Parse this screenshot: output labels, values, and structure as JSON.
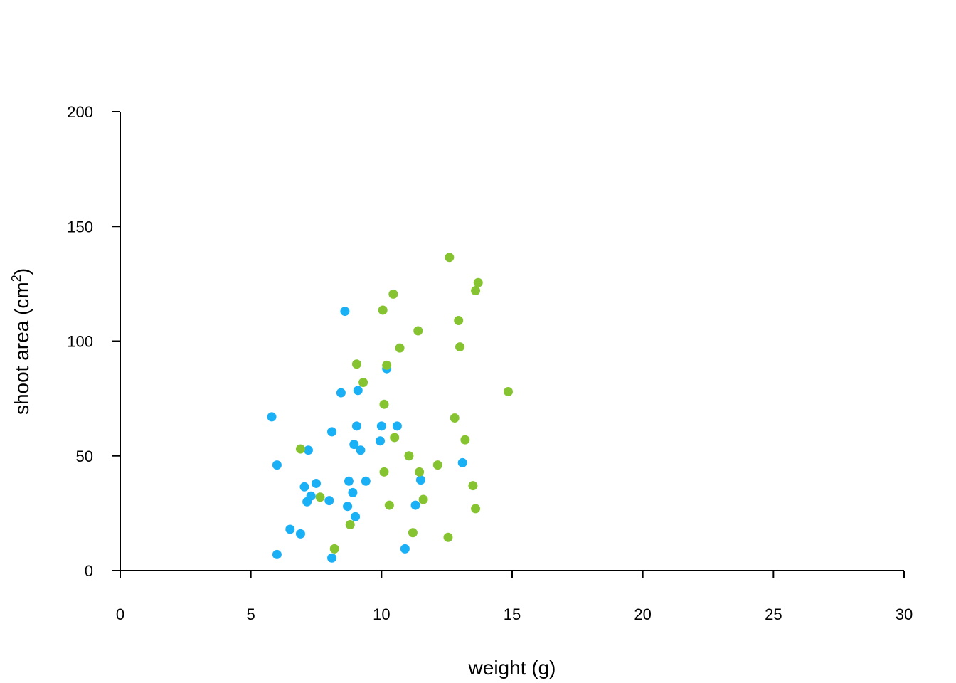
{
  "chart_data": {
    "type": "scatter",
    "title": "",
    "xlabel": "weight (g)",
    "ylabel_main": "shoot area (cm",
    "ylabel_sup": "2",
    "ylabel_end": ")",
    "xlim": [
      0,
      30
    ],
    "ylim": [
      0,
      200
    ],
    "x_ticks": [
      0,
      5,
      10,
      15,
      20,
      25,
      30
    ],
    "y_ticks": [
      0,
      50,
      100,
      150,
      200
    ],
    "x_tick_labels": [
      "0",
      "5",
      "10",
      "15",
      "20",
      "25",
      "30"
    ],
    "y_tick_labels": [
      "0",
      "50",
      "100",
      "150",
      "200"
    ],
    "grid": false,
    "legend": "none",
    "series": [
      {
        "color": "#1ab0f5",
        "points": [
          [
            5.8,
            67
          ],
          [
            6.0,
            46
          ],
          [
            6.0,
            7
          ],
          [
            6.5,
            18
          ],
          [
            6.9,
            16
          ],
          [
            7.05,
            36.5
          ],
          [
            7.15,
            30
          ],
          [
            7.2,
            52.5
          ],
          [
            7.3,
            32.5
          ],
          [
            7.5,
            38
          ],
          [
            8.0,
            30.5
          ],
          [
            8.1,
            60.5
          ],
          [
            8.1,
            5.5
          ],
          [
            8.45,
            77.5
          ],
          [
            8.6,
            113
          ],
          [
            8.7,
            28
          ],
          [
            8.75,
            39
          ],
          [
            8.9,
            34
          ],
          [
            8.95,
            55
          ],
          [
            9.0,
            23.5
          ],
          [
            9.05,
            63
          ],
          [
            9.1,
            78.5
          ],
          [
            9.2,
            52.5
          ],
          [
            9.4,
            39
          ],
          [
            9.95,
            56.5
          ],
          [
            10.0,
            63
          ],
          [
            10.2,
            88
          ],
          [
            10.6,
            63
          ],
          [
            10.9,
            9.5
          ],
          [
            11.3,
            28.5
          ],
          [
            11.5,
            39.5
          ],
          [
            13.1,
            47
          ]
        ]
      },
      {
        "color": "#86c331",
        "points": [
          [
            6.9,
            53
          ],
          [
            7.65,
            32
          ],
          [
            8.2,
            9.5
          ],
          [
            8.8,
            20
          ],
          [
            9.05,
            90
          ],
          [
            9.3,
            82
          ],
          [
            10.05,
            113.5
          ],
          [
            10.1,
            72.5
          ],
          [
            10.1,
            43
          ],
          [
            10.2,
            89.5
          ],
          [
            10.3,
            28.5
          ],
          [
            10.45,
            120.5
          ],
          [
            10.5,
            58
          ],
          [
            10.7,
            97
          ],
          [
            11.05,
            50
          ],
          [
            11.2,
            16.5
          ],
          [
            11.4,
            104.5
          ],
          [
            11.45,
            43
          ],
          [
            11.6,
            31
          ],
          [
            12.15,
            46
          ],
          [
            12.55,
            14.5
          ],
          [
            12.6,
            136.5
          ],
          [
            12.8,
            66.5
          ],
          [
            12.95,
            109
          ],
          [
            13.0,
            97.5
          ],
          [
            13.2,
            57
          ],
          [
            13.5,
            37
          ],
          [
            13.6,
            27
          ],
          [
            13.6,
            122
          ],
          [
            13.7,
            125.5
          ],
          [
            14.85,
            78
          ]
        ]
      }
    ]
  }
}
